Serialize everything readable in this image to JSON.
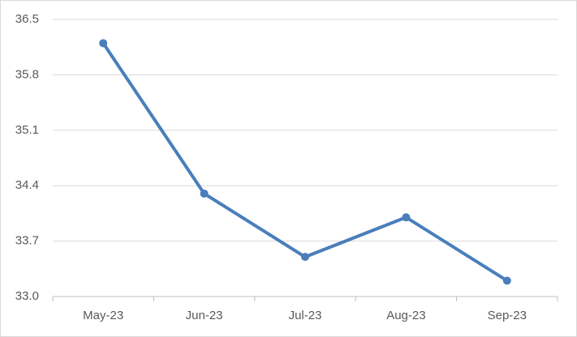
{
  "chart_data": {
    "type": "line",
    "categories": [
      "May-23",
      "Jun-23",
      "Jul-23",
      "Aug-23",
      "Sep-23"
    ],
    "values": [
      36.2,
      34.3,
      33.5,
      34.0,
      33.2
    ],
    "color": "#4a7ebb",
    "ylim": [
      33,
      36.5
    ],
    "yticks": [
      {
        "value": 33,
        "label": "33.0"
      },
      33.7,
      34.4,
      35.1,
      35.8,
      36.5
    ],
    "grid": true
  }
}
